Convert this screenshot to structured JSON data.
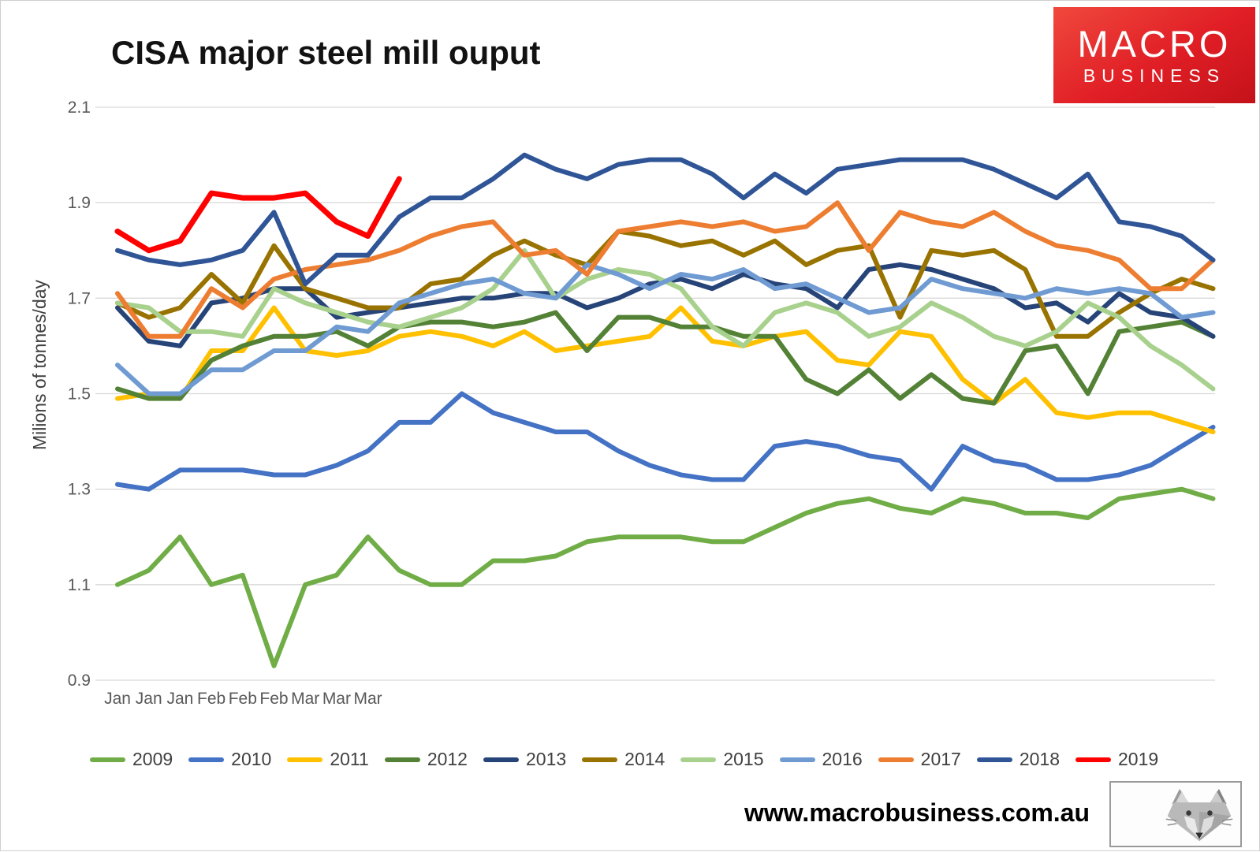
{
  "title": "CISA major steel mill ouput",
  "brand_logo": {
    "line1": "MACRO",
    "line2": "BUSINESS",
    "bg_color": "#e02025",
    "text_color": "#ffffff"
  },
  "footer": {
    "url": "www.macrobusiness.com.au"
  },
  "chart_data": {
    "type": "line",
    "title": "CISA major steel mill ouput",
    "xlabel": "",
    "ylabel": "Milions of tonnes/day",
    "ylim": [
      0.9,
      2.1
    ],
    "yticks": [
      "2.1",
      "1.9",
      "1.7",
      "1.5",
      "1.3",
      "1.1",
      "0.9"
    ],
    "grid": true,
    "legend_position": "bottom",
    "x_labels": [
      "Jan",
      "Jan",
      "Jan",
      "Feb",
      "Feb",
      "Feb",
      "Mar",
      "Mar",
      "Mar"
    ],
    "points_per_series": 36,
    "series": [
      {
        "name": "2009",
        "color": "#70ad47",
        "values": [
          1.1,
          1.13,
          1.2,
          1.1,
          1.12,
          0.93,
          1.1,
          1.12,
          1.2,
          1.13,
          1.1,
          1.1,
          1.15,
          1.15,
          1.16,
          1.19,
          1.2,
          1.2,
          1.2,
          1.19,
          1.19,
          1.22,
          1.25,
          1.27,
          1.28,
          1.26,
          1.25,
          1.28,
          1.27,
          1.25,
          1.25,
          1.24,
          1.28,
          1.29,
          1.3,
          1.28
        ]
      },
      {
        "name": "2010",
        "color": "#4472c4",
        "values": [
          1.31,
          1.3,
          1.34,
          1.34,
          1.34,
          1.33,
          1.33,
          1.35,
          1.38,
          1.44,
          1.44,
          1.5,
          1.46,
          1.44,
          1.42,
          1.42,
          1.38,
          1.35,
          1.33,
          1.32,
          1.32,
          1.39,
          1.4,
          1.39,
          1.37,
          1.36,
          1.3,
          1.39,
          1.36,
          1.35,
          1.32,
          1.32,
          1.33,
          1.35,
          1.39,
          1.43
        ]
      },
      {
        "name": "2011",
        "color": "#ffc000",
        "values": [
          1.49,
          1.5,
          1.49,
          1.59,
          1.59,
          1.68,
          1.59,
          1.58,
          1.59,
          1.62,
          1.63,
          1.62,
          1.6,
          1.63,
          1.59,
          1.6,
          1.61,
          1.62,
          1.68,
          1.61,
          1.6,
          1.62,
          1.63,
          1.57,
          1.56,
          1.63,
          1.62,
          1.53,
          1.48,
          1.53,
          1.46,
          1.45,
          1.46,
          1.46,
          1.44,
          1.42
        ]
      },
      {
        "name": "2012",
        "color": "#538135",
        "values": [
          1.51,
          1.49,
          1.49,
          1.57,
          1.6,
          1.62,
          1.62,
          1.63,
          1.6,
          1.64,
          1.65,
          1.65,
          1.64,
          1.65,
          1.67,
          1.59,
          1.66,
          1.66,
          1.64,
          1.64,
          1.62,
          1.62,
          1.53,
          1.5,
          1.55,
          1.49,
          1.54,
          1.49,
          1.48,
          1.59,
          1.6,
          1.5,
          1.63,
          1.64,
          1.65,
          1.62
        ]
      },
      {
        "name": "2013",
        "color": "#264478",
        "values": [
          1.68,
          1.61,
          1.6,
          1.69,
          1.7,
          1.72,
          1.72,
          1.66,
          1.67,
          1.68,
          1.69,
          1.7,
          1.7,
          1.71,
          1.71,
          1.68,
          1.7,
          1.73,
          1.74,
          1.72,
          1.75,
          1.73,
          1.72,
          1.68,
          1.76,
          1.77,
          1.76,
          1.74,
          1.72,
          1.68,
          1.69,
          1.65,
          1.71,
          1.67,
          1.66,
          1.62
        ]
      },
      {
        "name": "2014",
        "color": "#997300",
        "values": [
          1.69,
          1.66,
          1.68,
          1.75,
          1.69,
          1.81,
          1.72,
          1.7,
          1.68,
          1.68,
          1.73,
          1.74,
          1.79,
          1.82,
          1.79,
          1.77,
          1.84,
          1.83,
          1.81,
          1.82,
          1.79,
          1.82,
          1.77,
          1.8,
          1.81,
          1.66,
          1.8,
          1.79,
          1.8,
          1.76,
          1.62,
          1.62,
          1.67,
          1.71,
          1.74,
          1.72
        ]
      },
      {
        "name": "2015",
        "color": "#a9d18e",
        "values": [
          1.69,
          1.68,
          1.63,
          1.63,
          1.62,
          1.72,
          1.69,
          1.67,
          1.65,
          1.64,
          1.66,
          1.68,
          1.72,
          1.8,
          1.7,
          1.74,
          1.76,
          1.75,
          1.72,
          1.64,
          1.6,
          1.67,
          1.69,
          1.67,
          1.62,
          1.64,
          1.69,
          1.66,
          1.62,
          1.6,
          1.63,
          1.69,
          1.66,
          1.6,
          1.56,
          1.51
        ]
      },
      {
        "name": "2016",
        "color": "#6f9bd2",
        "values": [
          1.56,
          1.5,
          1.5,
          1.55,
          1.55,
          1.59,
          1.59,
          1.64,
          1.63,
          1.69,
          1.71,
          1.73,
          1.74,
          1.71,
          1.7,
          1.77,
          1.75,
          1.72,
          1.75,
          1.74,
          1.76,
          1.72,
          1.73,
          1.7,
          1.67,
          1.68,
          1.74,
          1.72,
          1.71,
          1.7,
          1.72,
          1.71,
          1.72,
          1.71,
          1.66,
          1.67
        ]
      },
      {
        "name": "2017",
        "color": "#ed7d31",
        "values": [
          1.71,
          1.62,
          1.62,
          1.72,
          1.68,
          1.74,
          1.76,
          1.77,
          1.78,
          1.8,
          1.83,
          1.85,
          1.86,
          1.79,
          1.8,
          1.75,
          1.84,
          1.85,
          1.86,
          1.85,
          1.86,
          1.84,
          1.85,
          1.9,
          1.8,
          1.88,
          1.86,
          1.85,
          1.88,
          1.84,
          1.81,
          1.8,
          1.78,
          1.72,
          1.72,
          1.78
        ]
      },
      {
        "name": "2018",
        "color": "#2f5597",
        "values": [
          1.8,
          1.78,
          1.77,
          1.78,
          1.8,
          1.88,
          1.73,
          1.79,
          1.79,
          1.87,
          1.91,
          1.91,
          1.95,
          2.0,
          1.97,
          1.95,
          1.98,
          1.99,
          1.99,
          1.96,
          1.91,
          1.96,
          1.92,
          1.97,
          1.98,
          1.99,
          1.99,
          1.99,
          1.97,
          1.94,
          1.91,
          1.96,
          1.86,
          1.85,
          1.83,
          1.78
        ]
      },
      {
        "name": "2019",
        "color": "#ff0000",
        "values": [
          1.84,
          1.8,
          1.82,
          1.92,
          1.91,
          1.91,
          1.92,
          1.86,
          1.83,
          1.95
        ]
      }
    ]
  }
}
